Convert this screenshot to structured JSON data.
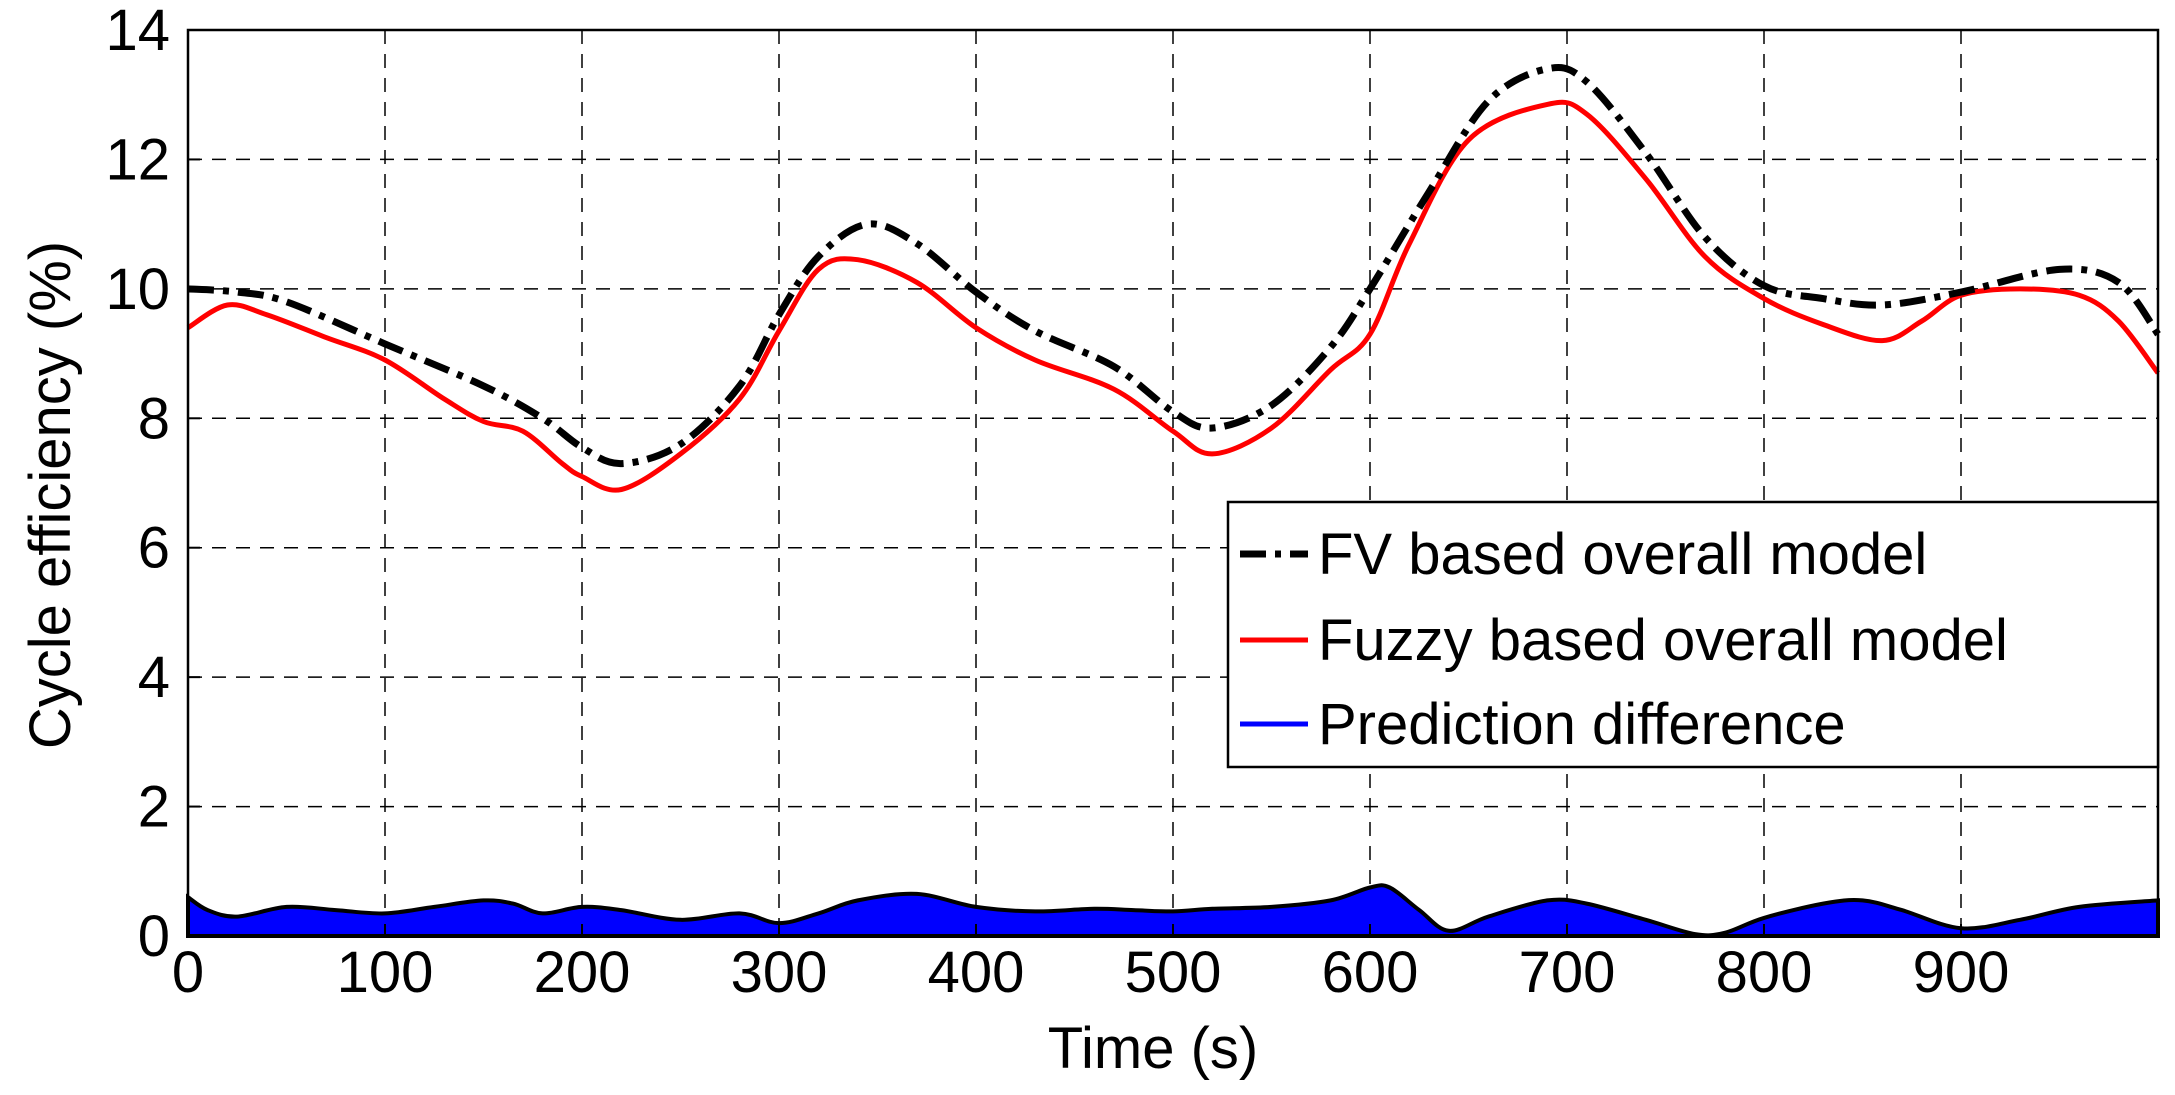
{
  "chart_data": {
    "type": "line",
    "title": "",
    "xlabel": "Time (s)",
    "ylabel": "Cycle efficiency (%)",
    "xlim": [
      0,
      1000
    ],
    "ylim": [
      0,
      14
    ],
    "xticks": [
      0,
      100,
      200,
      300,
      400,
      500,
      600,
      700,
      800,
      900
    ],
    "yticks": [
      0,
      2,
      4,
      6,
      8,
      10,
      12,
      14
    ],
    "grid": true,
    "legend_position": "center-right",
    "series": [
      {
        "name": "FV based overall model",
        "style": "dash-dot",
        "color": "#000000",
        "x": [
          0,
          25,
          50,
          100,
          150,
          180,
          200,
          220,
          250,
          280,
          300,
          320,
          345,
          370,
          400,
          430,
          470,
          500,
          520,
          550,
          580,
          600,
          630,
          660,
          690,
          710,
          740,
          770,
          800,
          830,
          860,
          900,
          950,
          980,
          1000
        ],
        "y": [
          10.0,
          9.95,
          9.8,
          9.15,
          8.5,
          8.0,
          7.55,
          7.3,
          7.6,
          8.5,
          9.6,
          10.5,
          11.0,
          10.7,
          9.95,
          9.35,
          8.8,
          8.1,
          7.85,
          8.2,
          9.1,
          10.0,
          11.5,
          12.9,
          13.4,
          13.2,
          12.1,
          10.8,
          10.05,
          9.85,
          9.75,
          9.95,
          10.3,
          10.1,
          9.3
        ]
      },
      {
        "name": "Fuzzy based overall model",
        "style": "solid",
        "color": "#ff0000",
        "x": [
          0,
          20,
          40,
          70,
          100,
          130,
          150,
          170,
          190,
          200,
          220,
          250,
          280,
          300,
          320,
          340,
          370,
          400,
          430,
          470,
          500,
          520,
          550,
          580,
          600,
          620,
          650,
          690,
          710,
          740,
          770,
          800,
          830,
          860,
          880,
          900,
          930,
          960,
          980,
          1000
        ],
        "y": [
          9.4,
          9.75,
          9.6,
          9.25,
          8.9,
          8.3,
          7.95,
          7.8,
          7.3,
          7.1,
          6.9,
          7.45,
          8.3,
          9.35,
          10.3,
          10.45,
          10.1,
          9.4,
          8.9,
          8.45,
          7.8,
          7.45,
          7.85,
          8.75,
          9.3,
          10.7,
          12.3,
          12.85,
          12.7,
          11.7,
          10.5,
          9.85,
          9.45,
          9.2,
          9.5,
          9.9,
          10.0,
          9.9,
          9.5,
          8.7
        ]
      },
      {
        "name": "Prediction difference",
        "style": "filled-area",
        "color": "#0000ff",
        "x": [
          0,
          10,
          25,
          50,
          75,
          100,
          125,
          150,
          165,
          180,
          200,
          220,
          250,
          280,
          300,
          320,
          340,
          370,
          400,
          430,
          460,
          480,
          500,
          520,
          550,
          580,
          600,
          610,
          625,
          640,
          660,
          690,
          710,
          740,
          765,
          780,
          800,
          830,
          850,
          870,
          900,
          930,
          960,
          1000
        ],
        "y": [
          0.6,
          0.4,
          0.3,
          0.45,
          0.4,
          0.35,
          0.45,
          0.55,
          0.5,
          0.35,
          0.45,
          0.4,
          0.25,
          0.35,
          0.2,
          0.35,
          0.55,
          0.65,
          0.45,
          0.38,
          0.42,
          0.4,
          0.38,
          0.42,
          0.45,
          0.55,
          0.75,
          0.75,
          0.4,
          0.08,
          0.3,
          0.55,
          0.5,
          0.25,
          0.03,
          0.05,
          0.28,
          0.5,
          0.55,
          0.4,
          0.12,
          0.25,
          0.45,
          0.55
        ]
      }
    ]
  }
}
